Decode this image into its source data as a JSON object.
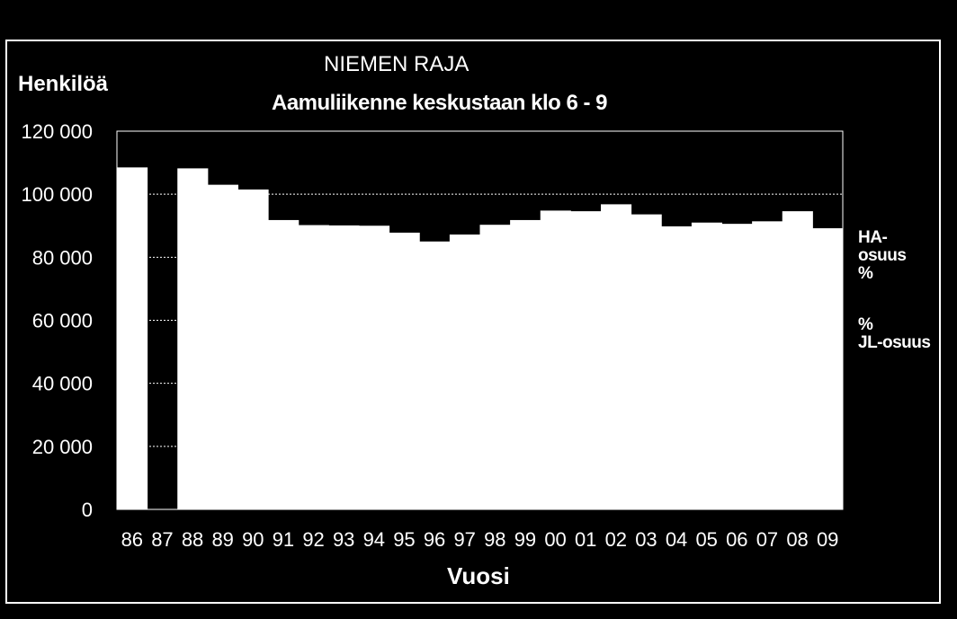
{
  "title": "NIEMEN RAJA",
  "subtitle": "Aamuliikenne keskustaan klo 6 - 9",
  "side_labels": {
    "top": [
      "HA-",
      "osuus",
      "%"
    ],
    "bottom": [
      "%",
      "JL-osuus"
    ]
  },
  "chart_data": {
    "type": "bar",
    "categories": [
      "86",
      "87",
      "88",
      "89",
      "90",
      "91",
      "92",
      "93",
      "94",
      "95",
      "96",
      "97",
      "98",
      "99",
      "00",
      "01",
      "02",
      "03",
      "04",
      "05",
      "06",
      "07",
      "08",
      "09"
    ],
    "values": [
      108500,
      0,
      108200,
      103000,
      101500,
      91800,
      90200,
      90100,
      90000,
      87800,
      85000,
      87200,
      90300,
      91800,
      94800,
      94600,
      96800,
      93600,
      89800,
      91000,
      90600,
      91400,
      94600,
      89200
    ],
    "xlabel": "Vuosi",
    "ylabel": "Henkilöä",
    "ylim": [
      0,
      120000
    ],
    "yticks": [
      "0",
      "20 000",
      "40 000",
      "60 000",
      "80 000",
      "100 000",
      "120 000"
    ],
    "grid": true,
    "colors": {
      "background": "#000000",
      "bar": "#ffffff",
      "grid": "#ffffff"
    }
  }
}
